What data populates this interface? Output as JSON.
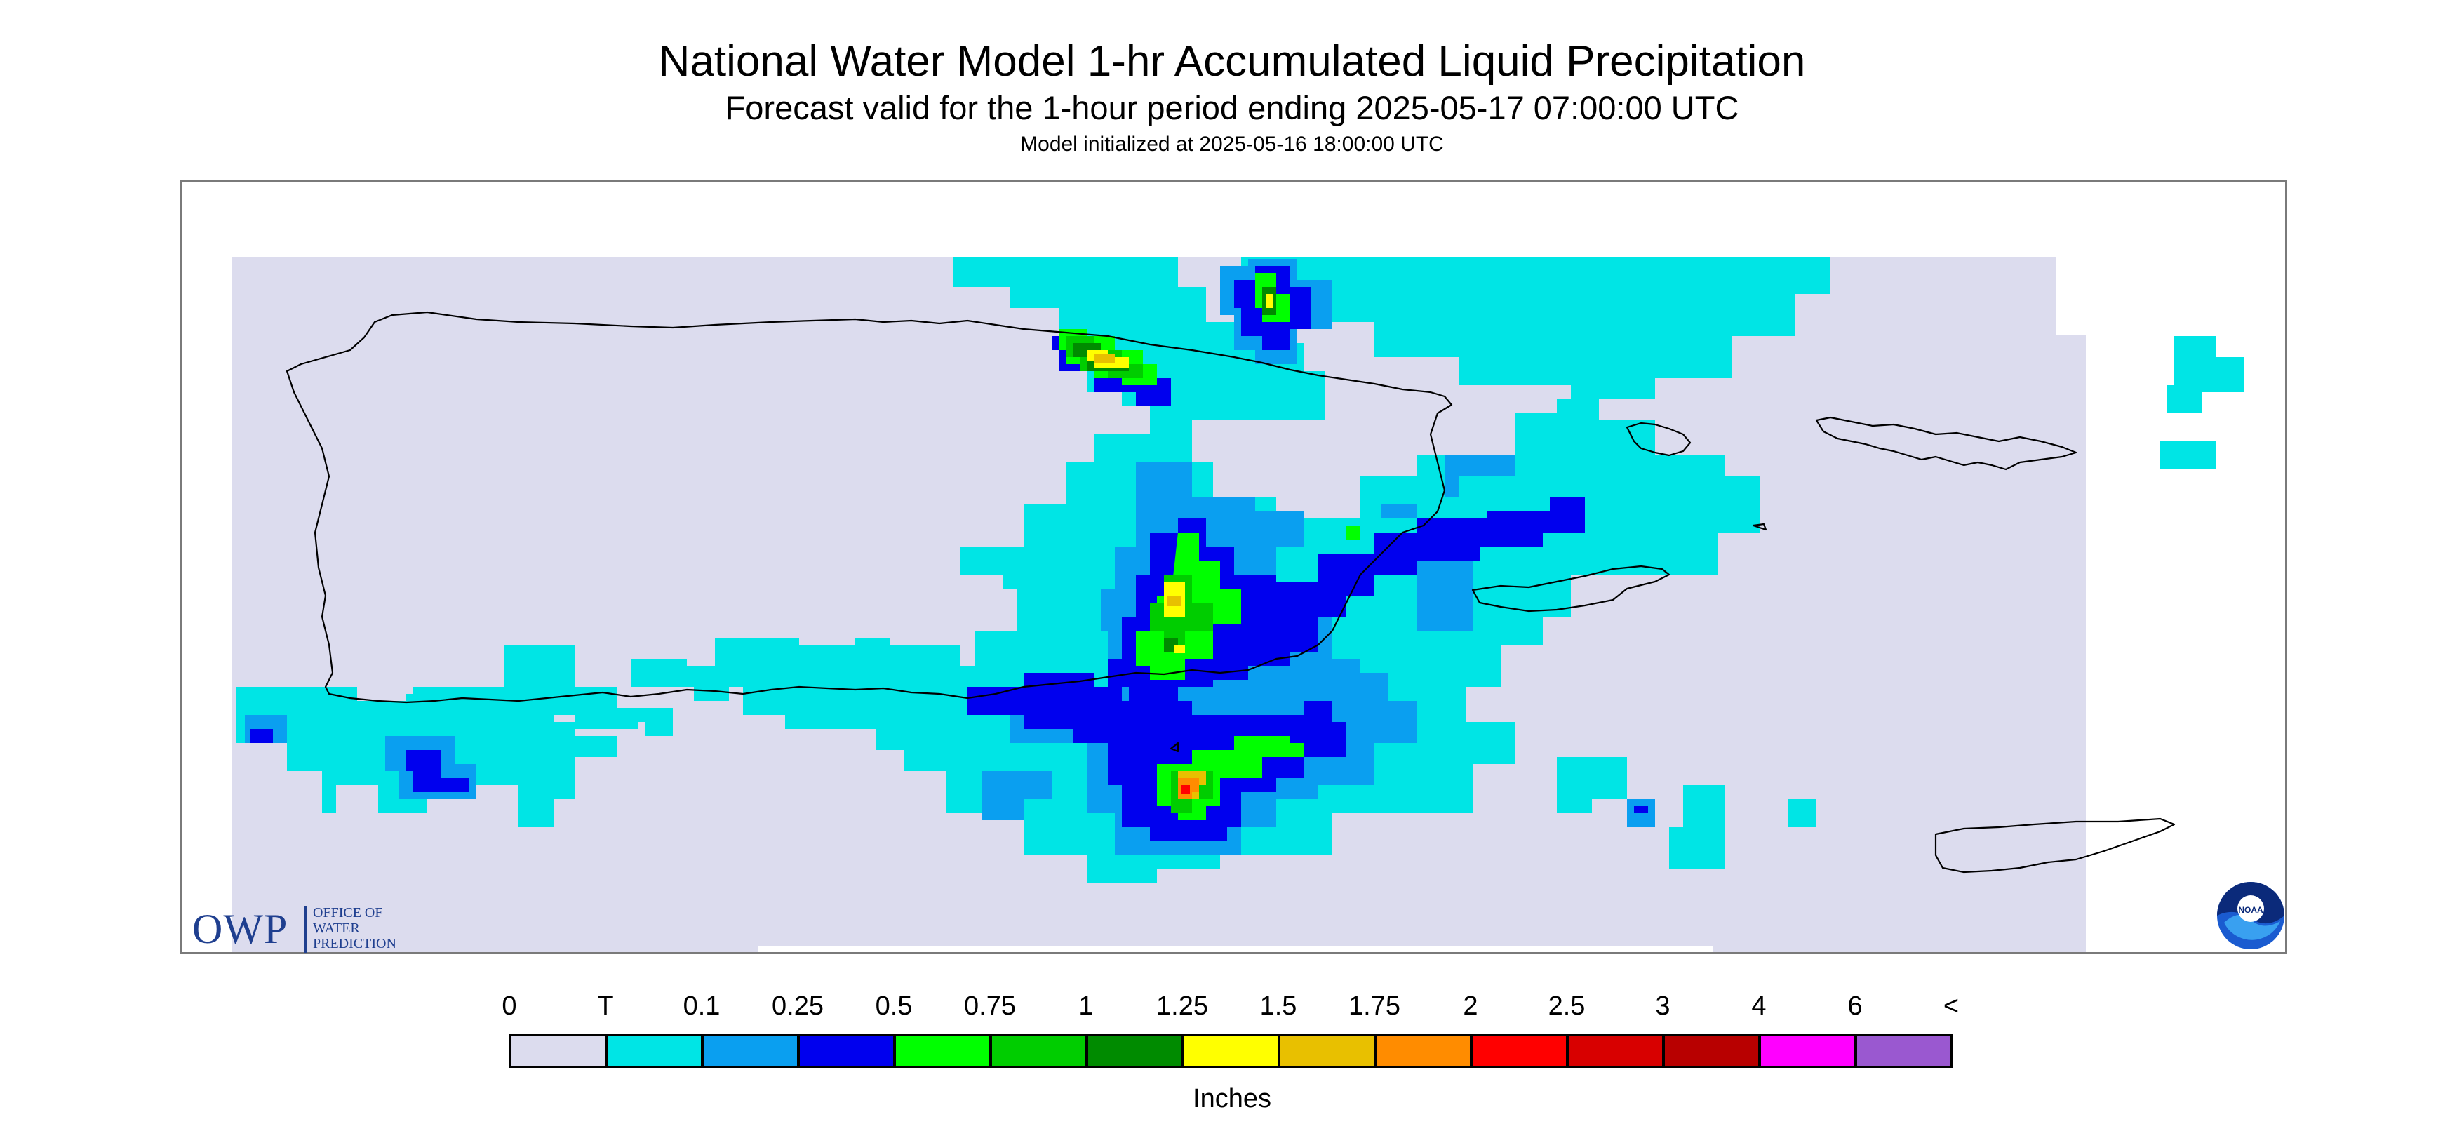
{
  "title": "National Water Model 1-hr Accumulated Liquid Precipitation",
  "subtitle": "Forecast valid for the 1-hour period ending 2025-05-17 07:00:00 UTC",
  "init_line": "Model initialized at 2025-05-16 18:00:00 UTC",
  "logo": {
    "owp_mark": "OWP",
    "owp_text_1": "OFFICE OF",
    "owp_text_2": "WATER",
    "owp_text_3": "PREDICTION",
    "noaa_text": "NOAA"
  },
  "legend": {
    "labels": [
      "0",
      "T",
      "0.1",
      "0.25",
      "0.5",
      "0.75",
      "1",
      "1.25",
      "1.5",
      "1.75",
      "2",
      "2.5",
      "3",
      "4",
      "6",
      "<"
    ],
    "colors": [
      "#dcdcee",
      "#00e5e5",
      "#0a9ff0",
      "#0000ee",
      "#00ff00",
      "#00cd00",
      "#008b00",
      "#ffff00",
      "#e8c000",
      "#ff8c00",
      "#ff0000",
      "#d80000",
      "#b80000",
      "#ff00ff",
      "#9a58d0"
    ],
    "units": "Inches"
  },
  "map": {
    "background_color": "#dcdcee",
    "outline_color": "#000000"
  }
}
